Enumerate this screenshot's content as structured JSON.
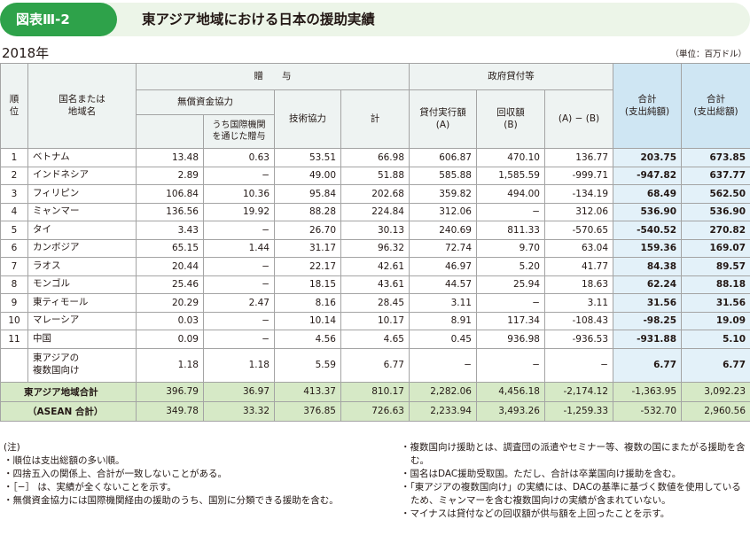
{
  "header": {
    "badge": "図表Ⅲ-2",
    "title": "東アジア地域における日本の援助実績"
  },
  "year": "2018年",
  "unit": "（単位：百万ドル）",
  "columns": {
    "rank": "順\n位",
    "country": "国名または\n地域名",
    "grant_group": "贈　　与",
    "grant_aid": "無償資金協力",
    "via_intl": "うち国際機関\nを通じた贈与",
    "technical": "技術協力",
    "grant_total": "計",
    "loan_group": "政府貸付等",
    "disbursed": "貸付実行額\n(A)",
    "recovered": "回収額\n(B)",
    "diff": "(A) − (B)",
    "net": "合計\n(支出純額)",
    "gross": "合計\n(支出総額)"
  },
  "rows": [
    {
      "rank": "1",
      "name": "ベトナム",
      "grant_aid": "13.48",
      "via_intl": "0.63",
      "technical": "53.51",
      "grant_total": "66.98",
      "disbursed": "606.87",
      "recovered": "470.10",
      "diff": "136.77",
      "net": "203.75",
      "gross": "673.85"
    },
    {
      "rank": "2",
      "name": "インドネシア",
      "grant_aid": "2.89",
      "via_intl": "−",
      "technical": "49.00",
      "grant_total": "51.88",
      "disbursed": "585.88",
      "recovered": "1,585.59",
      "diff": "-999.71",
      "net": "-947.82",
      "gross": "637.77"
    },
    {
      "rank": "3",
      "name": "フィリピン",
      "grant_aid": "106.84",
      "via_intl": "10.36",
      "technical": "95.84",
      "grant_total": "202.68",
      "disbursed": "359.82",
      "recovered": "494.00",
      "diff": "-134.19",
      "net": "68.49",
      "gross": "562.50"
    },
    {
      "rank": "4",
      "name": "ミャンマー",
      "grant_aid": "136.56",
      "via_intl": "19.92",
      "technical": "88.28",
      "grant_total": "224.84",
      "disbursed": "312.06",
      "recovered": "−",
      "diff": "312.06",
      "net": "536.90",
      "gross": "536.90"
    },
    {
      "rank": "5",
      "name": "タイ",
      "grant_aid": "3.43",
      "via_intl": "−",
      "technical": "26.70",
      "grant_total": "30.13",
      "disbursed": "240.69",
      "recovered": "811.33",
      "diff": "-570.65",
      "net": "-540.52",
      "gross": "270.82"
    },
    {
      "rank": "6",
      "name": "カンボジア",
      "grant_aid": "65.15",
      "via_intl": "1.44",
      "technical": "31.17",
      "grant_total": "96.32",
      "disbursed": "72.74",
      "recovered": "9.70",
      "diff": "63.04",
      "net": "159.36",
      "gross": "169.07"
    },
    {
      "rank": "7",
      "name": "ラオス",
      "grant_aid": "20.44",
      "via_intl": "−",
      "technical": "22.17",
      "grant_total": "42.61",
      "disbursed": "46.97",
      "recovered": "5.20",
      "diff": "41.77",
      "net": "84.38",
      "gross": "89.57"
    },
    {
      "rank": "8",
      "name": "モンゴル",
      "grant_aid": "25.46",
      "via_intl": "−",
      "technical": "18.15",
      "grant_total": "43.61",
      "disbursed": "44.57",
      "recovered": "25.94",
      "diff": "18.63",
      "net": "62.24",
      "gross": "88.18"
    },
    {
      "rank": "9",
      "name": "東ティモール",
      "grant_aid": "20.29",
      "via_intl": "2.47",
      "technical": "8.16",
      "grant_total": "28.45",
      "disbursed": "3.11",
      "recovered": "−",
      "diff": "3.11",
      "net": "31.56",
      "gross": "31.56"
    },
    {
      "rank": "10",
      "name": "マレーシア",
      "grant_aid": "0.03",
      "via_intl": "−",
      "technical": "10.14",
      "grant_total": "10.17",
      "disbursed": "8.91",
      "recovered": "117.34",
      "diff": "-108.43",
      "net": "-98.25",
      "gross": "19.09"
    },
    {
      "rank": "11",
      "name": "中国",
      "grant_aid": "0.09",
      "via_intl": "−",
      "technical": "4.56",
      "grant_total": "4.65",
      "disbursed": "0.45",
      "recovered": "936.98",
      "diff": "-936.53",
      "net": "-931.88",
      "gross": "5.10"
    },
    {
      "rank": "",
      "name": "東アジアの\n複数国向け",
      "grant_aid": "1.18",
      "via_intl": "1.18",
      "technical": "5.59",
      "grant_total": "6.77",
      "disbursed": "−",
      "recovered": "−",
      "diff": "−",
      "net": "6.77",
      "gross": "6.77"
    }
  ],
  "totals": [
    {
      "name": "東アジア地域合計",
      "grant_aid": "396.79",
      "via_intl": "36.97",
      "technical": "413.37",
      "grant_total": "810.17",
      "disbursed": "2,282.06",
      "recovered": "4,456.18",
      "diff": "-2,174.12",
      "net": "-1,363.95",
      "gross": "3,092.23"
    },
    {
      "name": "（ASEAN 合計）",
      "grant_aid": "349.78",
      "via_intl": "33.32",
      "technical": "376.85",
      "grant_total": "726.63",
      "disbursed": "2,233.94",
      "recovered": "3,493.26",
      "diff": "-1,259.33",
      "net": "-532.70",
      "gross": "2,960.56"
    }
  ],
  "notes_left": {
    "heading": "(注)",
    "items": [
      "・順位は支出総額の多い順。",
      "・四捨五入の関係上、合計が一致しないことがある。",
      "・［−］ は、実績が全くないことを示す。",
      "・無償資金協力には国際機関経由の援助のうち、国別に分類できる援助を含む。"
    ]
  },
  "notes_right": {
    "items": [
      "・複数国向け援助とは、調査団の派遣やセミナー等、複数の国にまたがる援助を含む。",
      "・国名はDAC援助受取国。ただし、合計は卒業国向け援助を含む。",
      "・「東アジアの複数国向け」の実績には、DACの基準に基づく数値を使用しているため、ミャンマーを含む複数国向けの実績が含まれていない。",
      "・マイナスは貸付などの回収額が供与額を上回ったことを示す。"
    ]
  }
}
